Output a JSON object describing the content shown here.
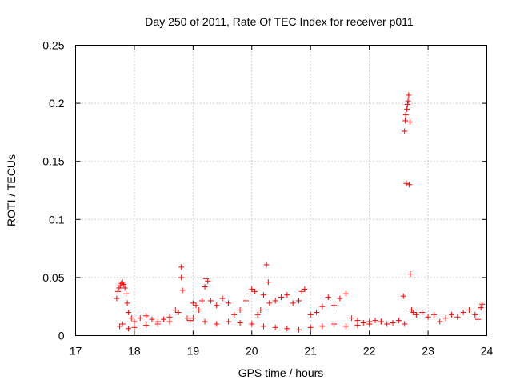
{
  "chart_data": {
    "type": "scatter",
    "title": "Day 250 of 2011, Rate Of TEC Index for receiver p011",
    "xlabel": "GPS time / hours",
    "ylabel": "ROTI / TECUs",
    "xlim": [
      17,
      24
    ],
    "ylim": [
      0,
      0.25
    ],
    "x_ticks": [
      17,
      18,
      19,
      20,
      21,
      22,
      23,
      24
    ],
    "y_ticks": [
      0,
      0.05,
      0.1,
      0.15,
      0.2,
      0.25
    ],
    "x_tick_labels": [
      "17",
      "18",
      "19",
      "20",
      "21",
      "22",
      "23",
      "24"
    ],
    "y_tick_labels": [
      "0",
      "0.05",
      "0.1",
      "0.15",
      "0.2",
      "0.25"
    ],
    "grid": true,
    "marker": "+",
    "marker_color": "#ff0000",
    "series": [
      {
        "name": "ROTI",
        "x": [
          17.7,
          17.72,
          17.74,
          17.76,
          17.78,
          17.8,
          17.82,
          17.84,
          17.86,
          17.88,
          17.9,
          17.95,
          18.0,
          18.1,
          18.2,
          18.3,
          18.4,
          18.5,
          18.6,
          18.7,
          18.75,
          18.8,
          18.8,
          18.82,
          18.9,
          18.95,
          19.0,
          19.05,
          19.1,
          19.15,
          19.2,
          19.22,
          19.25,
          19.3,
          19.4,
          19.5,
          19.6,
          19.7,
          19.8,
          19.9,
          20.0,
          20.05,
          20.1,
          20.15,
          20.2,
          20.25,
          20.28,
          20.3,
          20.4,
          20.5,
          20.6,
          20.7,
          20.8,
          20.85,
          20.9,
          21.0,
          21.1,
          21.2,
          21.3,
          21.4,
          21.5,
          21.6,
          21.7,
          21.8,
          21.9,
          22.0,
          22.1,
          22.2,
          22.3,
          22.4,
          22.5,
          22.58,
          22.6,
          22.61,
          22.62,
          22.63,
          22.64,
          22.65,
          22.66,
          22.67,
          22.68,
          22.69,
          22.7,
          22.72,
          22.75,
          22.8,
          22.9,
          23.0,
          23.1,
          23.2,
          23.3,
          23.4,
          23.5,
          23.6,
          23.7,
          23.8,
          23.85,
          23.9,
          23.92,
          17.75,
          17.8,
          17.9,
          18.0,
          18.2,
          18.4,
          18.6,
          19.0,
          19.2,
          19.4,
          19.6,
          19.8,
          20.0,
          20.2,
          20.4,
          20.6,
          20.8,
          21.0,
          21.2,
          21.4,
          21.6,
          21.8,
          22.0,
          22.2,
          22.4,
          22.6
        ],
        "y": [
          0.032,
          0.038,
          0.041,
          0.043,
          0.045,
          0.046,
          0.044,
          0.041,
          0.036,
          0.028,
          0.02,
          0.015,
          0.012,
          0.015,
          0.017,
          0.014,
          0.012,
          0.014,
          0.016,
          0.022,
          0.02,
          0.059,
          0.05,
          0.039,
          0.015,
          0.013,
          0.028,
          0.026,
          0.022,
          0.03,
          0.042,
          0.049,
          0.047,
          0.03,
          0.026,
          0.032,
          0.028,
          0.018,
          0.022,
          0.03,
          0.04,
          0.038,
          0.018,
          0.022,
          0.035,
          0.061,
          0.046,
          0.028,
          0.03,
          0.033,
          0.035,
          0.028,
          0.03,
          0.038,
          0.04,
          0.018,
          0.02,
          0.025,
          0.033,
          0.026,
          0.032,
          0.036,
          0.015,
          0.013,
          0.011,
          0.012,
          0.013,
          0.012,
          0.01,
          0.011,
          0.013,
          0.034,
          0.176,
          0.185,
          0.19,
          0.131,
          0.195,
          0.199,
          0.202,
          0.207,
          0.13,
          0.184,
          0.053,
          0.022,
          0.02,
          0.018,
          0.02,
          0.016,
          0.018,
          0.012,
          0.015,
          0.018,
          0.016,
          0.02,
          0.022,
          0.018,
          0.014,
          0.024,
          0.027,
          0.008,
          0.01,
          0.006,
          0.007,
          0.009,
          0.01,
          0.012,
          0.015,
          0.012,
          0.01,
          0.012,
          0.011,
          0.01,
          0.008,
          0.007,
          0.006,
          0.005,
          0.007,
          0.008,
          0.01,
          0.008,
          0.009,
          0.01,
          0.012,
          0.011,
          0.01
        ]
      }
    ]
  }
}
